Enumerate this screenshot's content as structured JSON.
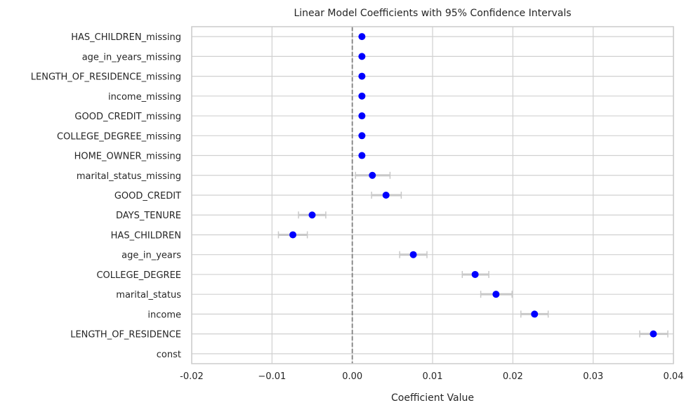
{
  "chart_data": {
    "type": "scatter",
    "title": "Linear Model Coefficients with 95% Confidence Intervals",
    "xlabel": "Coefficient Value",
    "ylabel": "",
    "xlim": [
      -0.02,
      0.04
    ],
    "xticks": [
      -0.02,
      -0.01,
      0.0,
      0.01,
      0.02,
      0.03,
      0.04
    ],
    "xtick_labels": [
      "-0.02",
      "−0.01",
      "0.00",
      "0.01",
      "0.02",
      "0.03",
      "0.04"
    ],
    "reference_line": 0.0,
    "grid": true,
    "colors": {
      "point": "#0000ff",
      "errorbar": "#c8c8c8",
      "grid": "#d0d0d0",
      "reference": "#808080",
      "frame": "#cccccc"
    },
    "categories": [
      "HAS_CHILDREN_missing",
      "age_in_years_missing",
      "LENGTH_OF_RESIDENCE_missing",
      "income_missing",
      "GOOD_CREDIT_missing",
      "COLLEGE_DEGREE_missing",
      "HOME_OWNER_missing",
      "marital_status_missing",
      "GOOD_CREDIT",
      "DAYS_TENURE",
      "HAS_CHILDREN",
      "age_in_years",
      "COLLEGE_DEGREE",
      "marital_status",
      "income",
      "LENGTH_OF_RESIDENCE",
      "const"
    ],
    "coef": [
      0.0012,
      0.0012,
      0.0012,
      0.0012,
      0.0012,
      0.0012,
      0.0012,
      0.0025,
      0.0042,
      -0.005,
      -0.0074,
      0.0076,
      0.0153,
      0.0179,
      0.0227,
      0.0375,
      null
    ],
    "ci_low": [
      0.0012,
      0.0012,
      0.0012,
      0.0012,
      0.0012,
      0.0012,
      0.0012,
      0.0004,
      0.0024,
      -0.0067,
      -0.0092,
      0.0059,
      0.0137,
      0.016,
      0.021,
      0.0358,
      null
    ],
    "ci_high": [
      0.0012,
      0.0012,
      0.0012,
      0.0012,
      0.0012,
      0.0012,
      0.0012,
      0.0047,
      0.0061,
      -0.0033,
      -0.0056,
      0.0093,
      0.017,
      0.0199,
      0.0244,
      0.0393,
      null
    ]
  }
}
